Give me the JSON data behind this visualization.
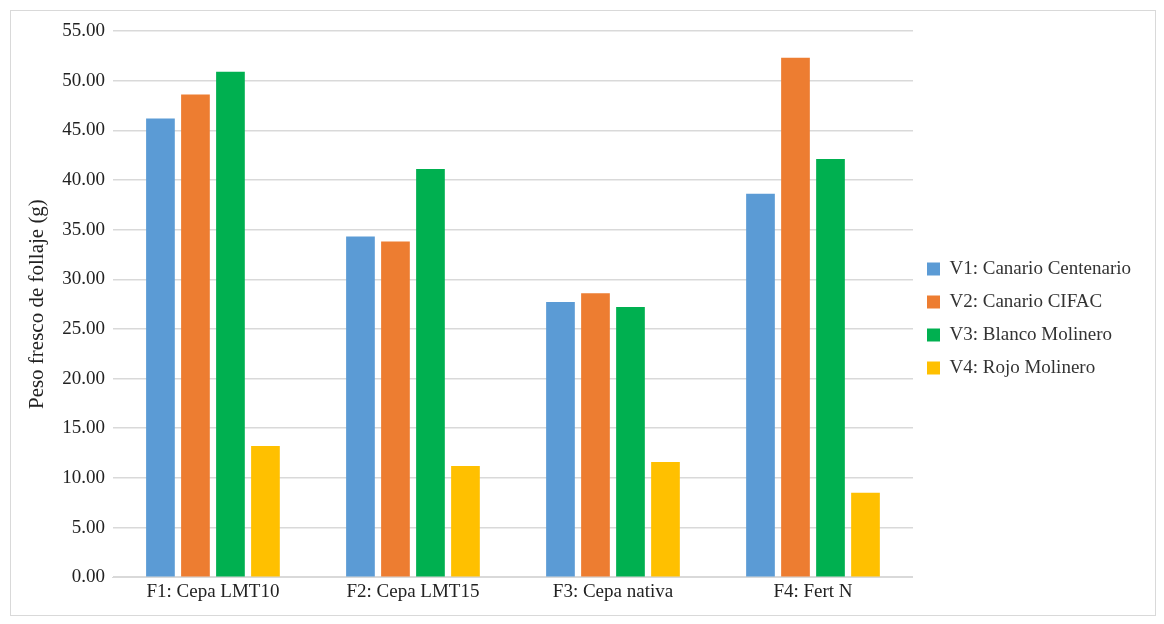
{
  "chart_data": {
    "type": "bar",
    "ylabel": "Peso fresco de follaje (g)",
    "categories": [
      "F1: Cepa LMT10",
      "F2: Cepa LMT15",
      "F3: Cepa nativa",
      "F4: Fert N"
    ],
    "series": [
      {
        "name": "V1: Canario Centenario",
        "color": "#5b9bd5",
        "values": [
          46.2,
          34.3,
          27.7,
          38.6
        ]
      },
      {
        "name": "V2: Canario CIFAC",
        "color": "#ed7d31",
        "values": [
          48.6,
          33.8,
          28.6,
          52.3
        ]
      },
      {
        "name": "V3: Blanco Molinero",
        "color": "#00b050",
        "values": [
          50.9,
          41.1,
          27.2,
          42.1
        ]
      },
      {
        "name": "V4: Rojo Molinero",
        "color": "#ffc000",
        "values": [
          13.2,
          11.2,
          11.6,
          8.5
        ]
      }
    ],
    "ylim": [
      0,
      55
    ],
    "yticks": [
      {
        "value": 0,
        "label": "0.00"
      },
      {
        "value": 5,
        "label": "5.00"
      },
      {
        "value": 10,
        "label": "10.00"
      },
      {
        "value": 15,
        "label": "15.00"
      },
      {
        "value": 20,
        "label": "20.00"
      },
      {
        "value": 25,
        "label": "25.00"
      },
      {
        "value": 30,
        "label": "30.00"
      },
      {
        "value": 35,
        "label": "35.00"
      },
      {
        "value": 40,
        "label": "40.00"
      },
      {
        "value": 45,
        "label": "45.00"
      },
      {
        "value": 50,
        "label": "50.00"
      },
      {
        "value": 55,
        "label": "55.00"
      }
    ],
    "grid": "y",
    "legend": "right"
  }
}
